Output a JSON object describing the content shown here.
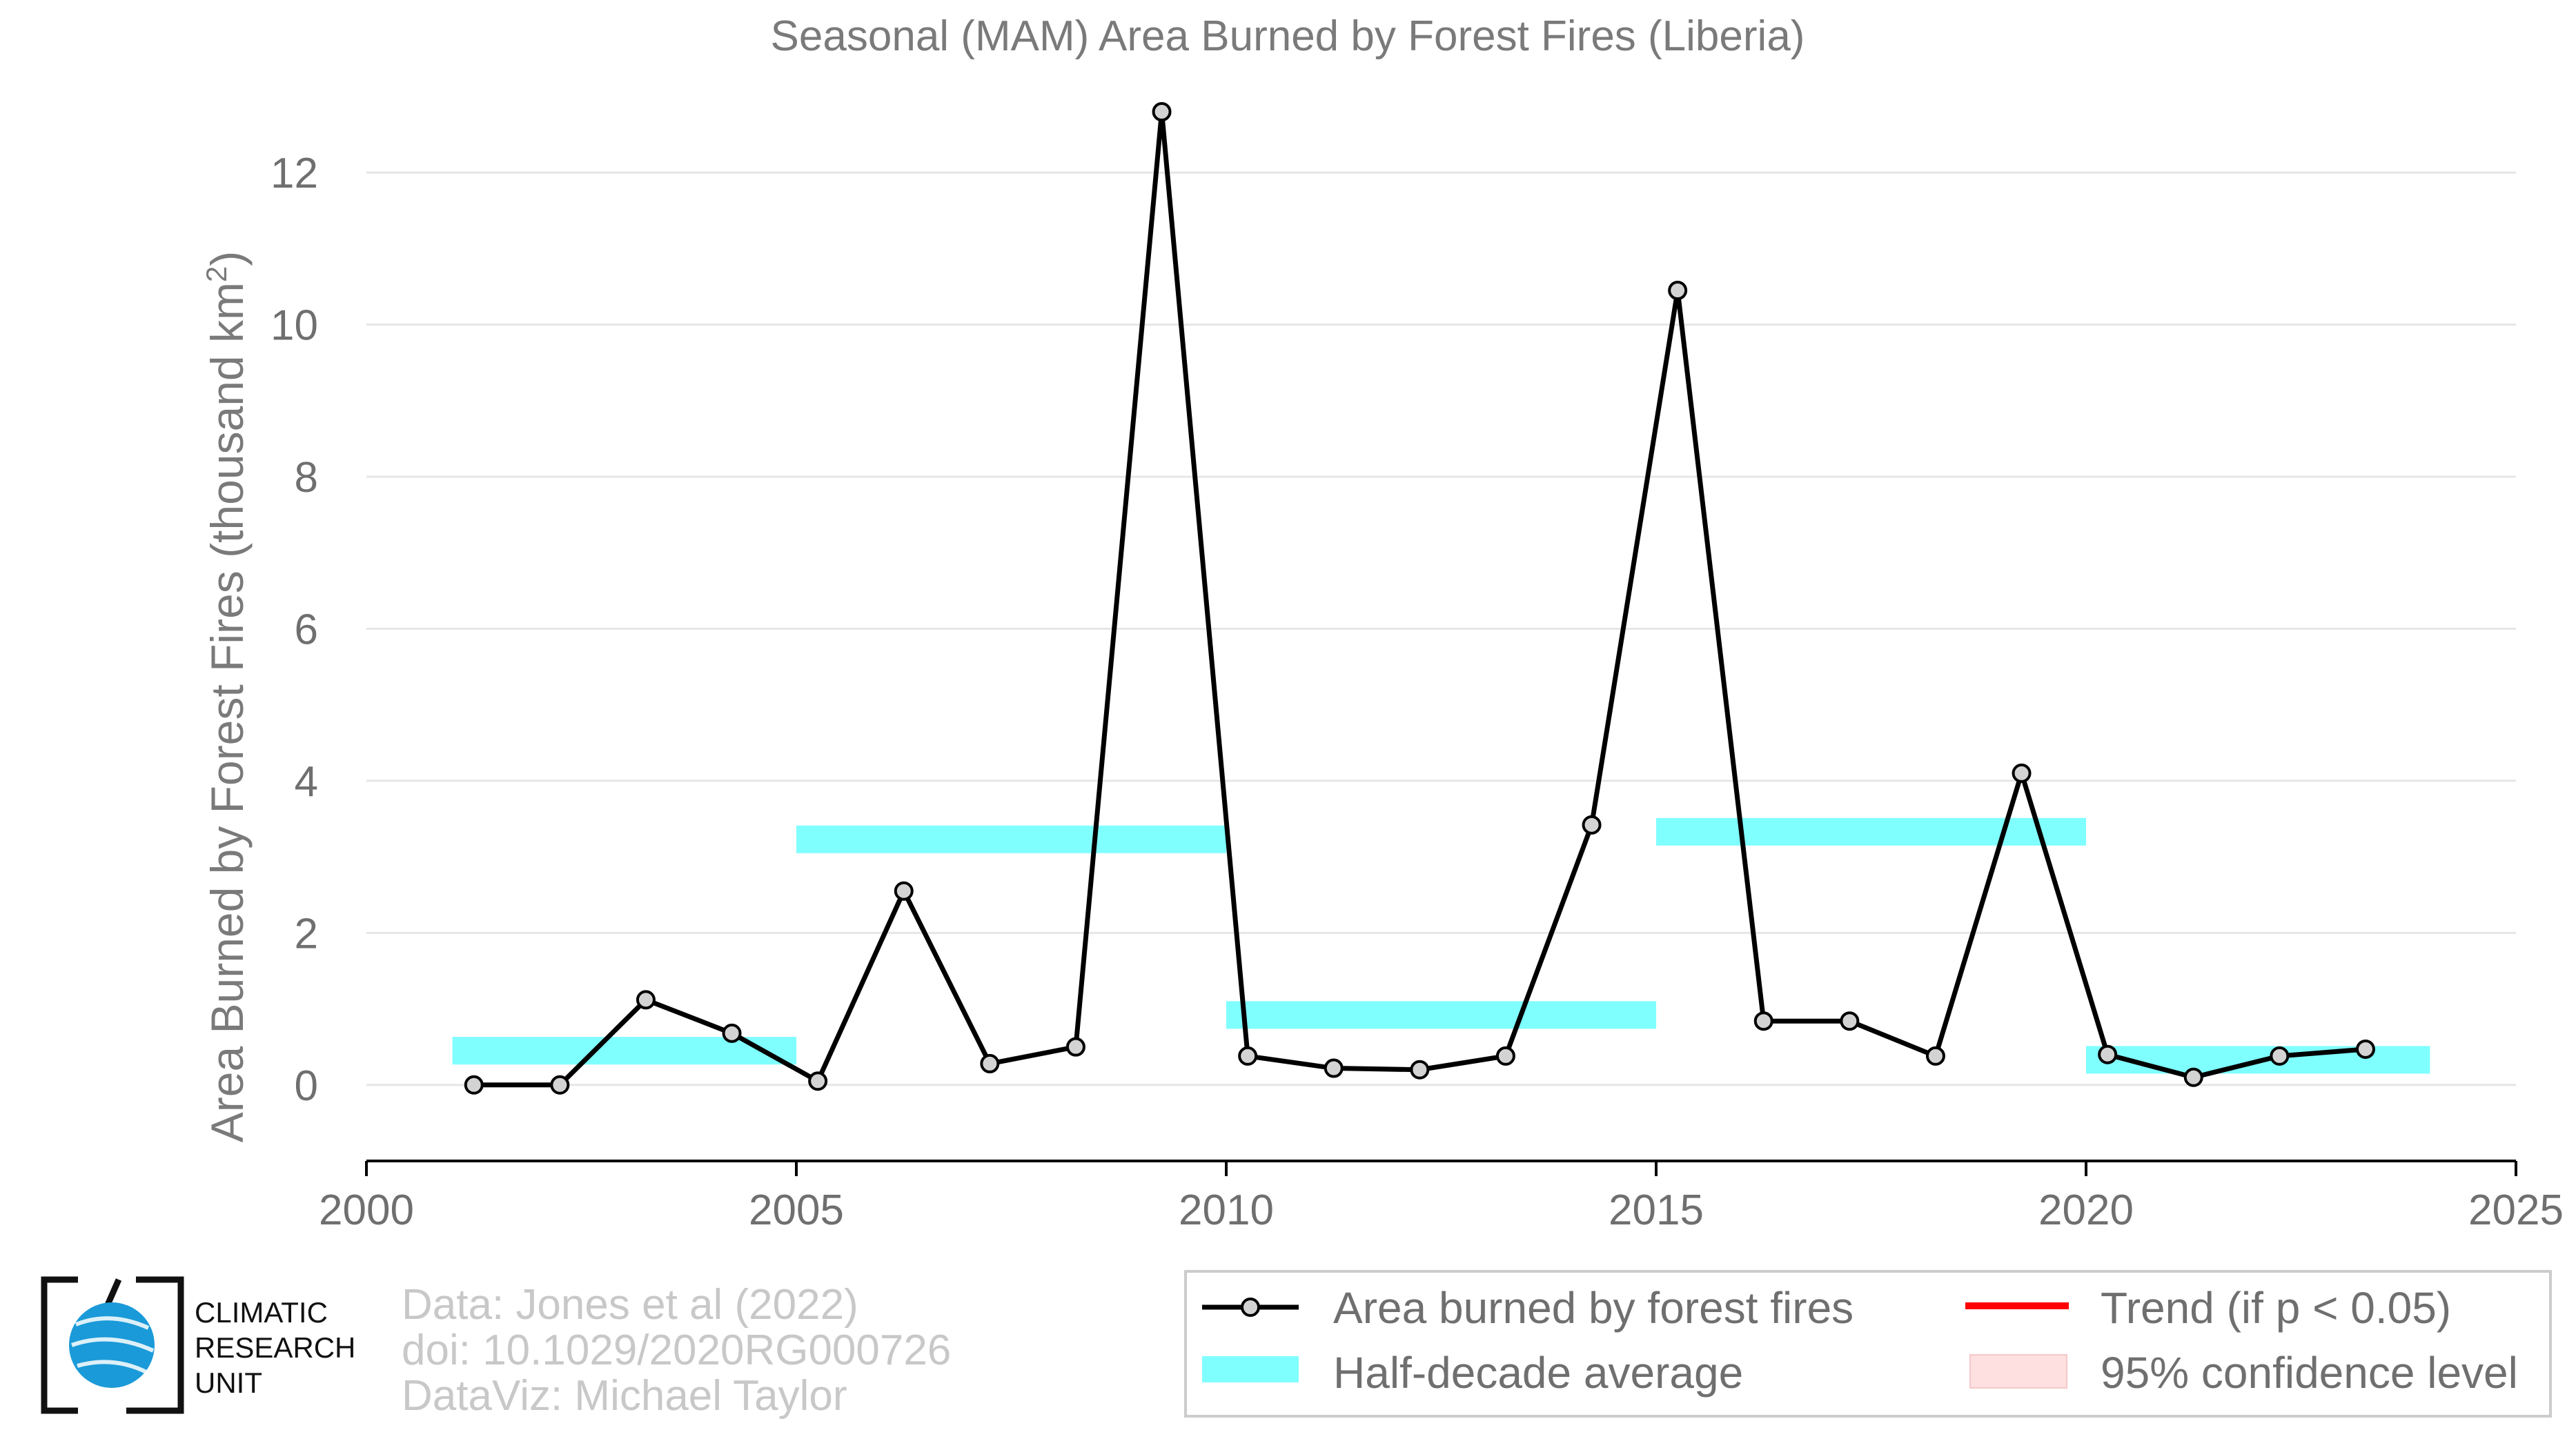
{
  "colors": {
    "line": "#000000",
    "marker_fill": "#d3d3d3",
    "half_decade": "#80ffff",
    "trend": "#ff0000",
    "confidence": "#ffe0e0",
    "grid": "#e6e6e6",
    "logo_blue": "#1a9ad8"
  },
  "chart_data": {
    "type": "line",
    "title": "Seasonal (MAM) Area Burned by Forest Fires (Liberia)",
    "xlabel": "",
    "ylabel_prefix": "Area Burned by Forest Fires (thousand km",
    "ylabel_sup": "2",
    "ylabel_suffix": ")",
    "xlim": [
      2000,
      2025
    ],
    "ylim": [
      -1,
      13
    ],
    "xticks": [
      2000,
      2005,
      2010,
      2015,
      2020,
      2025
    ],
    "yticks": [
      0,
      2,
      4,
      6,
      8,
      10,
      12
    ],
    "grid": true,
    "series": [
      {
        "name": "Area burned by forest fires",
        "x": [
          2001.25,
          2002.25,
          2003.25,
          2004.25,
          2005.25,
          2006.25,
          2007.25,
          2008.25,
          2009.25,
          2010.25,
          2011.25,
          2012.25,
          2013.25,
          2014.25,
          2015.25,
          2016.25,
          2017.25,
          2018.25,
          2019.25,
          2020.25,
          2021.25,
          2022.25,
          2023.25
        ],
        "y": [
          0.0,
          0.0,
          1.12,
          0.68,
          0.05,
          2.55,
          0.28,
          0.5,
          12.8,
          0.38,
          0.22,
          0.2,
          0.38,
          3.42,
          10.45,
          0.84,
          0.84,
          0.38,
          4.1,
          0.4,
          0.1,
          0.38,
          0.47
        ]
      }
    ],
    "half_decade_averages": [
      {
        "start": 2001,
        "end": 2005,
        "value": 0.45
      },
      {
        "start": 2005,
        "end": 2010,
        "value": 3.23
      },
      {
        "start": 2010,
        "end": 2015,
        "value": 0.92
      },
      {
        "start": 2015,
        "end": 2020,
        "value": 3.33
      },
      {
        "start": 2020,
        "end": 2024,
        "value": 0.33
      }
    ],
    "legend": {
      "placement": "bottom-right",
      "entries": [
        {
          "label": "Area burned by forest fires",
          "kind": "line-marker"
        },
        {
          "label": "Half-decade average",
          "kind": "band"
        },
        {
          "label": "Trend (if p < 0.05)",
          "kind": "trend-line"
        },
        {
          "label": "95% confidence level",
          "kind": "confidence-patch"
        }
      ]
    }
  },
  "credits": [
    "Data: Jones et al (2022)",
    "doi: 10.1029/2020RG000726",
    "DataViz: Michael Taylor"
  ],
  "logo": {
    "lines": [
      "CLIMATIC",
      "RESEARCH",
      "UNIT"
    ]
  }
}
